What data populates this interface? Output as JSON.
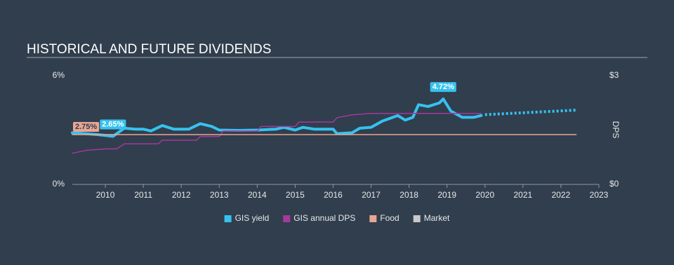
{
  "chart_data": {
    "type": "line",
    "title": "HISTORICAL AND FUTURE DIVIDENDS",
    "y2label": "DPS",
    "xlim": [
      2009.13,
      2023
    ],
    "xticks": [
      2010,
      2011,
      2012,
      2013,
      2014,
      2015,
      2016,
      2017,
      2018,
      2019,
      2020,
      2021,
      2022,
      2023
    ],
    "ylim": [
      0,
      6
    ],
    "yticks": [
      {
        "value": 0,
        "label": "0%"
      },
      {
        "value": 6,
        "label": "6%"
      }
    ],
    "y2lim": [
      0,
      3
    ],
    "y2ticks": [
      {
        "value": 0,
        "label": "$0"
      },
      {
        "value": 3,
        "label": "$3"
      }
    ],
    "series": [
      {
        "name": "GIS yield",
        "color": "#36c2ef",
        "width": 4,
        "x": [
          2009.13,
          2009.8,
          2010.2,
          2010.5,
          2010.8,
          2011.0,
          2011.2,
          2011.5,
          2011.8,
          2012.2,
          2012.5,
          2012.8,
          2013.0,
          2013.5,
          2014.0,
          2014.5,
          2014.7,
          2015.0,
          2015.2,
          2015.5,
          2016.0,
          2016.1,
          2016.5,
          2016.7,
          2017.0,
          2017.3,
          2017.7,
          2017.9,
          2018.1,
          2018.25,
          2018.5,
          2018.8,
          2018.9,
          2019.1,
          2019.4,
          2019.7,
          2019.9
        ],
        "values": [
          2.85,
          2.75,
          2.65,
          3.1,
          3.05,
          3.05,
          2.95,
          3.25,
          3.05,
          3.05,
          3.35,
          3.2,
          3.0,
          2.98,
          3.0,
          3.05,
          3.15,
          3.0,
          3.15,
          3.05,
          3.05,
          2.8,
          2.85,
          3.1,
          3.15,
          3.5,
          3.8,
          3.55,
          3.7,
          4.4,
          4.3,
          4.5,
          4.72,
          4.05,
          3.7,
          3.7,
          3.8
        ],
        "value_labels": [
          null,
          null,
          "2.65%",
          null,
          null,
          null,
          null,
          null,
          null,
          null,
          null,
          null,
          null,
          null,
          null,
          null,
          null,
          null,
          null,
          null,
          null,
          null,
          null,
          null,
          null,
          null,
          null,
          null,
          null,
          null,
          null,
          null,
          "4.72%",
          null,
          null,
          null,
          null
        ],
        "forecast_x": [
          2020.0,
          2022.4
        ],
        "forecast_values": [
          3.85,
          4.1
        ]
      },
      {
        "name": "GIS annual DPS",
        "color": "#a3399d",
        "width": 1.5,
        "axis": "y2",
        "x": [
          2009.13,
          2009.5,
          2010.0,
          2010.3,
          2010.5,
          2011.4,
          2011.5,
          2012.4,
          2012.5,
          2013.0,
          2013.1,
          2014.0,
          2014.1,
          2015.0,
          2015.1,
          2016.0,
          2016.1,
          2016.5,
          2017.0,
          2019.9
        ],
        "values": [
          0.86,
          0.94,
          0.98,
          0.98,
          1.12,
          1.12,
          1.22,
          1.22,
          1.32,
          1.32,
          1.47,
          1.47,
          1.6,
          1.6,
          1.72,
          1.72,
          1.84,
          1.92,
          1.96,
          1.96
        ]
      },
      {
        "name": "Food",
        "color": "#e9a594",
        "width": 1.5,
        "x": [
          2009.13,
          2022.4
        ],
        "values": [
          2.75,
          2.75
        ],
        "value_labels": [
          "2.75%",
          null
        ]
      },
      {
        "name": "Market",
        "color": "#c9c9c9",
        "x": [],
        "values": []
      }
    ]
  }
}
